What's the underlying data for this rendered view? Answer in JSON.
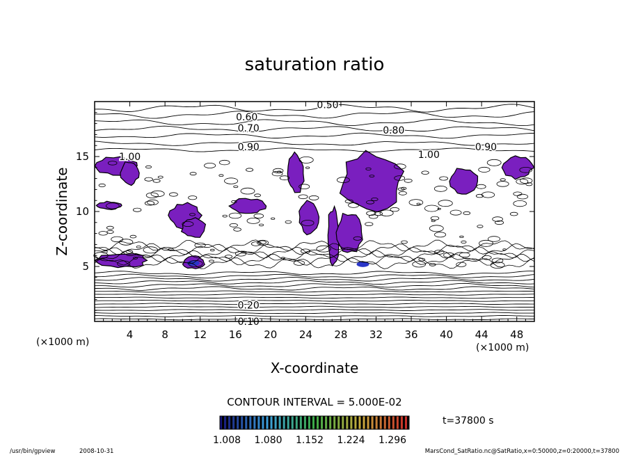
{
  "chart_data": {
    "type": "contour",
    "title": "saturation ratio",
    "xlabel": "X-coordinate",
    "ylabel": "Z-coordinate",
    "x_unit_left": "(×1000 m)",
    "x_unit_right": "(×1000 m)",
    "xlim": [
      0,
      50
    ],
    "ylim": [
      0,
      20
    ],
    "x_ticks": [
      "4",
      "8",
      "12",
      "16",
      "20",
      "24",
      "28",
      "32",
      "36",
      "40",
      "44",
      "48"
    ],
    "x_tick_values": [
      4,
      8,
      12,
      16,
      20,
      24,
      28,
      32,
      36,
      40,
      44,
      48
    ],
    "y_ticks": [
      "5",
      "10",
      "15"
    ],
    "y_tick_values": [
      5,
      10,
      15
    ],
    "contour_levels": [
      {
        "label": "0.50",
        "x": 26.5,
        "z": 19.7
      },
      {
        "label": "0.60",
        "x": 17.3,
        "z": 18.6
      },
      {
        "label": "0.70",
        "x": 17.5,
        "z": 17.6
      },
      {
        "label": "0.80",
        "x": 34.0,
        "z": 17.4
      },
      {
        "label": "0.90",
        "x": 17.5,
        "z": 15.9
      },
      {
        "label": "0.90",
        "x": 44.5,
        "z": 15.9
      },
      {
        "label": "1.00",
        "x": 4.0,
        "z": 15.0
      },
      {
        "label": "1.00",
        "x": 38.0,
        "z": 15.2
      },
      {
        "label": "0.20",
        "x": 17.5,
        "z": 1.5
      },
      {
        "label": "0.10",
        "x": 17.5,
        "z": 0.0
      }
    ],
    "shaded_regions": [
      {
        "x": [
          0.2,
          4.8
        ],
        "z": [
          13.3,
          15.0
        ]
      },
      {
        "x": [
          3.0,
          5.0
        ],
        "z": [
          12.4,
          14.6
        ]
      },
      {
        "x": [
          8.5,
          12.0
        ],
        "z": [
          8.5,
          10.8
        ]
      },
      {
        "x": [
          9.8,
          12.6
        ],
        "z": [
          7.6,
          9.4
        ]
      },
      {
        "x": [
          15.5,
          19.5
        ],
        "z": [
          9.8,
          11.2
        ]
      },
      {
        "x": [
          0.3,
          3.0
        ],
        "z": [
          10.2,
          10.9
        ]
      },
      {
        "x": [
          22.0,
          23.8
        ],
        "z": [
          11.6,
          15.3
        ]
      },
      {
        "x": [
          23.2,
          25.5
        ],
        "z": [
          8.0,
          11.0
        ]
      },
      {
        "x": [
          26.5,
          27.8
        ],
        "z": [
          5.2,
          10.5
        ]
      },
      {
        "x": [
          28.0,
          35.0
        ],
        "z": [
          10.0,
          15.3
        ]
      },
      {
        "x": [
          27.5,
          30.5
        ],
        "z": [
          6.2,
          10.0
        ]
      },
      {
        "x": [
          40.5,
          43.5
        ],
        "z": [
          11.5,
          14.0
        ]
      },
      {
        "x": [
          46.5,
          49.8
        ],
        "z": [
          13.0,
          15.0
        ]
      },
      {
        "x": [
          0.3,
          6.0
        ],
        "z": [
          4.9,
          6.2
        ]
      },
      {
        "x": [
          10.0,
          12.5
        ],
        "z": [
          4.8,
          6.0
        ]
      }
    ],
    "fill_color": "#7a1fbf",
    "min_fill_color": "#2a36c8",
    "contour_interval_text": "CONTOUR INTERVAL = 5.000E-02",
    "colorbar": {
      "tick_labels": [
        "1.008",
        "1.080",
        "1.152",
        "1.224",
        "1.296"
      ],
      "range": [
        1.008,
        1.296
      ]
    },
    "time_text": "t=37800 s"
  },
  "footer": {
    "program": "/usr/bin/gpview",
    "date": "2008-10-31",
    "source": "MarsCond_SatRatio.nc@SatRatio,x=0:50000,z=0:20000,t=37800"
  }
}
